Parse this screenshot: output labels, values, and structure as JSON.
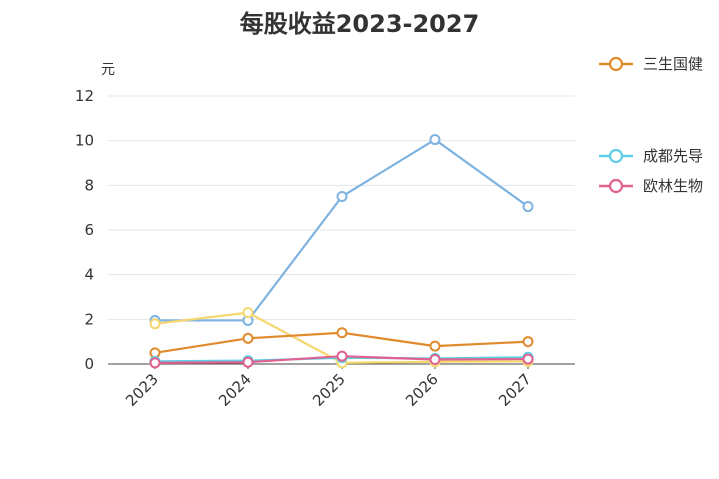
{
  "chart_data": {
    "type": "line",
    "title": "每股收益2023-2027",
    "ylabel": "元",
    "xlabel": "",
    "ylim": [
      0,
      12
    ],
    "y_ticks": [
      0,
      2,
      4,
      6,
      8,
      10,
      12
    ],
    "categories": [
      "2023",
      "2024",
      "2025",
      "2026",
      "2027"
    ],
    "grid": "horizontal",
    "legend_placement": "right",
    "series": [
      {
        "name": "",
        "color": "#7fb3e0",
        "values": [
          1.95,
          1.95,
          7.5,
          10.05,
          7.05
        ],
        "in_legend": false
      },
      {
        "name": "",
        "color": "#f5d76e",
        "values": [
          1.8,
          2.3,
          0.05,
          0.1,
          0.12
        ],
        "in_legend": false
      },
      {
        "name": "三生国健",
        "color": "#e08a2c",
        "values": [
          0.5,
          1.15,
          1.4,
          0.8,
          1.0
        ],
        "in_legend": true
      },
      {
        "name": "成都先导",
        "color": "#5fcfe6",
        "values": [
          0.12,
          0.15,
          0.28,
          0.25,
          0.3
        ],
        "in_legend": true
      },
      {
        "name": "欧林生物",
        "color": "#e0608f",
        "values": [
          0.05,
          0.08,
          0.35,
          0.2,
          0.22
        ],
        "in_legend": true
      }
    ]
  }
}
